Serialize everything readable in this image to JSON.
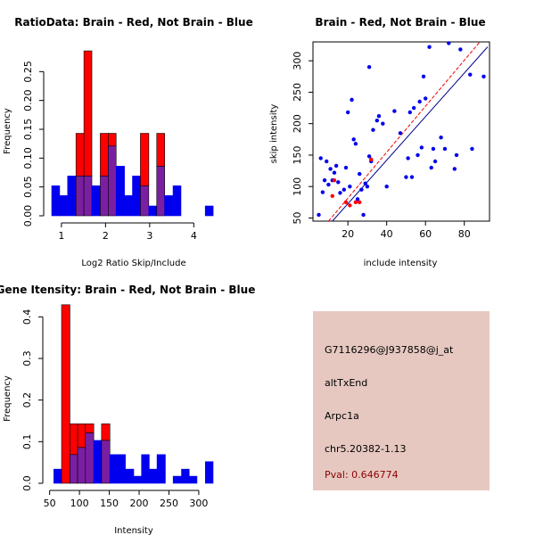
{
  "colors": {
    "red": "#ff0000",
    "blue": "#0000ee",
    "overlap": "#7b1fa2",
    "diag_red": "#ee0000",
    "diag_blue": "#00008b",
    "panel_bg": "#e6c8c0",
    "pval": "#8b0000"
  },
  "chart_data": [
    {
      "type": "bar",
      "id": "ratio-hist",
      "title": "RatioData: Brain - Red, Not Brain - Blue",
      "xlabel": "Log2 Ratio Skip/Include",
      "ylabel": "Frequency",
      "xlim": [
        0.78,
        4.6
      ],
      "ylim": [
        0,
        0.3
      ],
      "xticks": [
        "1",
        "2",
        "3",
        "4"
      ],
      "xtick_values": [
        1,
        2,
        3,
        4
      ],
      "yticks": [
        "0.00",
        "0.05",
        "0.10",
        "0.15",
        "0.20",
        "0.25"
      ],
      "ytick_values": [
        0,
        0.05,
        0.1,
        0.15,
        0.2,
        0.25
      ],
      "bins": [
        {
          "x0": 0.78,
          "x1": 0.96,
          "red": 0,
          "blue": 0.052
        },
        {
          "x0": 0.96,
          "x1": 1.14,
          "red": 0,
          "blue": 0.035
        },
        {
          "x0": 1.14,
          "x1": 1.33,
          "red": 0,
          "blue": 0.069
        },
        {
          "x0": 1.33,
          "x1": 1.51,
          "red": 0.143,
          "blue": 0.069
        },
        {
          "x0": 1.51,
          "x1": 1.69,
          "red": 0.286,
          "blue": 0.069
        },
        {
          "x0": 1.69,
          "x1": 1.88,
          "red": 0,
          "blue": 0.052
        },
        {
          "x0": 1.88,
          "x1": 2.06,
          "red": 0.143,
          "blue": 0.069
        },
        {
          "x0": 2.06,
          "x1": 2.24,
          "red": 0.143,
          "blue": 0.121
        },
        {
          "x0": 2.24,
          "x1": 2.43,
          "red": 0,
          "blue": 0.086
        },
        {
          "x0": 2.43,
          "x1": 2.61,
          "red": 0,
          "blue": 0.035
        },
        {
          "x0": 2.61,
          "x1": 2.79,
          "red": 0,
          "blue": 0.069
        },
        {
          "x0": 2.79,
          "x1": 2.98,
          "red": 0.143,
          "blue": 0.052
        },
        {
          "x0": 2.98,
          "x1": 3.16,
          "red": 0,
          "blue": 0.017
        },
        {
          "x0": 3.16,
          "x1": 3.34,
          "red": 0.143,
          "blue": 0.086
        },
        {
          "x0": 3.34,
          "x1": 3.53,
          "red": 0,
          "blue": 0.035
        },
        {
          "x0": 3.53,
          "x1": 3.71,
          "red": 0,
          "blue": 0.052
        },
        {
          "x0": 3.71,
          "x1": 3.89,
          "red": 0,
          "blue": 0
        },
        {
          "x0": 3.89,
          "x1": 4.08,
          "red": 0,
          "blue": 0
        },
        {
          "x0": 4.08,
          "x1": 4.26,
          "red": 0,
          "blue": 0
        },
        {
          "x0": 4.26,
          "x1": 4.44,
          "red": 0,
          "blue": 0.017
        }
      ]
    },
    {
      "type": "scatter",
      "id": "intensity-scatter",
      "title": "Brain - Red, Not Brain - Blue",
      "xlabel": "include intensity",
      "ylabel": "skip intensity",
      "xlim": [
        2,
        93
      ],
      "ylim": [
        45,
        330
      ],
      "xticks": [
        "20",
        "40",
        "60",
        "80"
      ],
      "xtick_values": [
        20,
        40,
        60,
        80
      ],
      "yticks": [
        "50",
        "100",
        "150",
        "200",
        "250",
        "300"
      ],
      "ytick_values": [
        50,
        100,
        150,
        200,
        250,
        300
      ],
      "lines": [
        {
          "color": "red",
          "dashed": true,
          "points": [
            [
              10,
              45
            ],
            [
              88,
              330
            ]
          ]
        },
        {
          "color": "blue",
          "dashed": false,
          "points": [
            [
              12,
              45
            ],
            [
              92,
              322
            ]
          ]
        }
      ],
      "points_blue": [
        [
          5,
          55
        ],
        [
          6,
          145
        ],
        [
          7,
          91
        ],
        [
          8,
          110
        ],
        [
          9,
          140
        ],
        [
          10,
          103
        ],
        [
          11,
          128
        ],
        [
          12,
          110
        ],
        [
          13,
          122
        ],
        [
          14,
          133
        ],
        [
          15,
          107
        ],
        [
          16,
          90
        ],
        [
          18,
          95
        ],
        [
          19,
          130
        ],
        [
          20,
          218
        ],
        [
          21,
          100
        ],
        [
          22,
          238
        ],
        [
          23,
          175
        ],
        [
          24,
          168
        ],
        [
          25,
          80
        ],
        [
          26,
          120
        ],
        [
          27,
          95
        ],
        [
          28,
          55
        ],
        [
          29,
          105
        ],
        [
          30,
          100
        ],
        [
          31,
          148
        ],
        [
          31,
          290
        ],
        [
          32,
          140
        ],
        [
          33,
          190
        ],
        [
          35,
          205
        ],
        [
          36,
          212
        ],
        [
          38,
          200
        ],
        [
          40,
          100
        ],
        [
          44,
          220
        ],
        [
          47,
          185
        ],
        [
          50,
          115
        ],
        [
          51,
          145
        ],
        [
          52,
          218
        ],
        [
          53,
          115
        ],
        [
          54,
          225
        ],
        [
          56,
          150
        ],
        [
          57,
          235
        ],
        [
          58,
          162
        ],
        [
          59,
          275
        ],
        [
          60,
          240
        ],
        [
          62,
          322
        ],
        [
          63,
          130
        ],
        [
          64,
          160
        ],
        [
          65,
          140
        ],
        [
          68,
          178
        ],
        [
          70,
          160
        ],
        [
          72,
          328
        ],
        [
          75,
          128
        ],
        [
          76,
          150
        ],
        [
          78,
          318
        ],
        [
          83,
          278
        ],
        [
          84,
          160
        ],
        [
          90,
          275
        ]
      ],
      "points_red": [
        [
          12,
          85
        ],
        [
          13,
          110
        ],
        [
          19,
          75
        ],
        [
          21,
          70
        ],
        [
          24,
          75
        ],
        [
          26,
          75
        ],
        [
          32,
          143
        ]
      ]
    },
    {
      "type": "bar",
      "id": "gene-intensity-hist",
      "title": "Gene Itensity: Brain - Red, Not Brain - Blue",
      "xlabel": "Intensity",
      "ylabel": "Frequency",
      "xlim": [
        52,
        330
      ],
      "ylim": [
        0,
        0.45
      ],
      "xticks": [
        "50",
        "100",
        "150",
        "200",
        "250",
        "300"
      ],
      "xtick_values": [
        50,
        100,
        150,
        200,
        250,
        300
      ],
      "yticks": [
        "0.0",
        "0.1",
        "0.2",
        "0.3",
        "0.4"
      ],
      "ytick_values": [
        0,
        0.1,
        0.2,
        0.3,
        0.4
      ],
      "bins": [
        {
          "x0": 57,
          "x1": 70,
          "red": 0,
          "blue": 0.034
        },
        {
          "x0": 70,
          "x1": 84,
          "red": 0.429,
          "blue": 0
        },
        {
          "x0": 84,
          "x1": 97,
          "red": 0.143,
          "blue": 0.069
        },
        {
          "x0": 97,
          "x1": 110,
          "red": 0.143,
          "blue": 0.086
        },
        {
          "x0": 110,
          "x1": 124,
          "red": 0.143,
          "blue": 0.121
        },
        {
          "x0": 124,
          "x1": 137,
          "red": 0,
          "blue": 0.103
        },
        {
          "x0": 137,
          "x1": 151,
          "red": 0.143,
          "blue": 0.103
        },
        {
          "x0": 151,
          "x1": 164,
          "red": 0,
          "blue": 0.069
        },
        {
          "x0": 164,
          "x1": 177,
          "red": 0,
          "blue": 0.069
        },
        {
          "x0": 177,
          "x1": 191,
          "red": 0,
          "blue": 0.034
        },
        {
          "x0": 191,
          "x1": 204,
          "red": 0,
          "blue": 0.017
        },
        {
          "x0": 204,
          "x1": 217,
          "red": 0,
          "blue": 0.069
        },
        {
          "x0": 217,
          "x1": 230,
          "red": 0,
          "blue": 0.034
        },
        {
          "x0": 230,
          "x1": 244,
          "red": 0,
          "blue": 0.069
        },
        {
          "x0": 244,
          "x1": 257,
          "red": 0,
          "blue": 0
        },
        {
          "x0": 257,
          "x1": 271,
          "red": 0,
          "blue": 0.017
        },
        {
          "x0": 271,
          "x1": 284,
          "red": 0,
          "blue": 0.034
        },
        {
          "x0": 284,
          "x1": 297,
          "red": 0,
          "blue": 0.017
        },
        {
          "x0": 297,
          "x1": 311,
          "red": 0,
          "blue": 0
        },
        {
          "x0": 311,
          "x1": 324,
          "red": 0,
          "blue": 0.052
        }
      ]
    }
  ],
  "info_panel": {
    "probe_id": "G7116296@J937858@j_at",
    "event_type": "altTxEnd",
    "gene": "Arpc1a",
    "location": "chr5.20382-1.13",
    "pval": "Pval: 0.646774"
  }
}
